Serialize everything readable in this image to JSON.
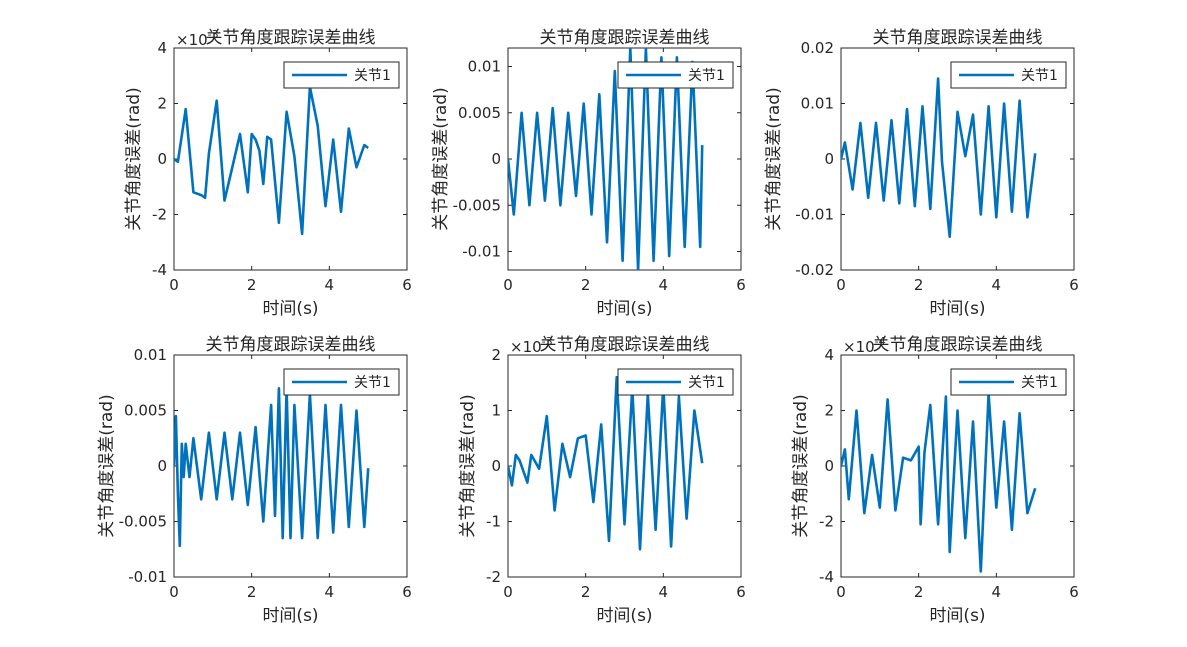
{
  "chart_data": [
    {
      "type": "line",
      "title": "关节角度跟踪误差曲线",
      "xlabel": "时间(s)",
      "ylabel": "关节角度误差(rad)",
      "exponent_label": "10",
      "exponent_power": "-3",
      "exponent_multiplier": "×",
      "xlim": [
        0,
        6
      ],
      "ylim": [
        -4,
        4
      ],
      "xticks": [
        "0",
        "2",
        "4",
        "6"
      ],
      "yticks": [
        "-4",
        "-2",
        "0",
        "2",
        "4"
      ],
      "legend": {
        "position": "top-right"
      },
      "series": [
        {
          "name": "关节1",
          "x": [
            0,
            0.1,
            0.3,
            0.5,
            0.7,
            0.8,
            0.9,
            1.1,
            1.3,
            1.5,
            1.7,
            1.9,
            2.0,
            2.1,
            2.2,
            2.3,
            2.4,
            2.5,
            2.7,
            2.9,
            3.1,
            3.3,
            3.5,
            3.7,
            3.9,
            4.1,
            4.3,
            4.5,
            4.7,
            4.9,
            5.0
          ],
          "y": [
            0,
            -0.1,
            1.8,
            -1.2,
            -1.3,
            -1.4,
            0.2,
            2.1,
            -1.5,
            -0.3,
            0.9,
            -1.2,
            0.9,
            0.7,
            0.3,
            -0.9,
            0.8,
            0.7,
            -2.3,
            1.7,
            0.1,
            -2.7,
            2.6,
            1.2,
            -1.7,
            0.7,
            -1.9,
            1.1,
            -0.3,
            0.5,
            0.4
          ]
        }
      ]
    },
    {
      "type": "line",
      "title": "关节角度跟踪误差曲线",
      "xlabel": "时间(s)",
      "ylabel": "关节角度误差(rad)",
      "xlim": [
        0,
        6
      ],
      "ylim": [
        -0.012,
        0.012
      ],
      "xticks": [
        "0",
        "2",
        "4",
        "6"
      ],
      "yticks": [
        "-0.01",
        "-0.005",
        "0",
        "0.005",
        "0.01"
      ],
      "ytick_values": [
        -0.01,
        -0.005,
        0,
        0.005,
        0.01
      ],
      "legend": {
        "position": "top-right"
      },
      "series": [
        {
          "name": "关节1",
          "x": [
            0,
            0.15,
            0.35,
            0.55,
            0.75,
            0.95,
            1.15,
            1.35,
            1.55,
            1.75,
            1.95,
            2.15,
            2.35,
            2.55,
            2.75,
            2.95,
            3.15,
            3.35,
            3.55,
            3.75,
            3.95,
            4.15,
            4.35,
            4.55,
            4.75,
            4.95,
            5.0
          ],
          "y": [
            0,
            -0.006,
            0.005,
            -0.005,
            0.005,
            -0.0045,
            0.0055,
            -0.005,
            0.005,
            -0.004,
            0.006,
            -0.006,
            0.007,
            -0.009,
            0.0095,
            -0.011,
            0.012,
            -0.012,
            0.012,
            -0.011,
            0.011,
            -0.0105,
            0.011,
            -0.0095,
            0.0105,
            -0.0095,
            0.0015
          ]
        }
      ]
    },
    {
      "type": "line",
      "title": "关节角度跟踪误差曲线",
      "xlabel": "时间(s)",
      "ylabel": "关节角度误差(rad)",
      "xlim": [
        0,
        6
      ],
      "ylim": [
        -0.02,
        0.02
      ],
      "xticks": [
        "0",
        "2",
        "4",
        "6"
      ],
      "yticks": [
        "-0.02",
        "-0.01",
        "0",
        "0.01",
        "0.02"
      ],
      "ytick_values": [
        -0.02,
        -0.01,
        0,
        0.01,
        0.02
      ],
      "legend": {
        "position": "top-right"
      },
      "series": [
        {
          "name": "关节1",
          "x": [
            0,
            0.1,
            0.3,
            0.5,
            0.7,
            0.9,
            1.1,
            1.3,
            1.5,
            1.7,
            1.9,
            2.1,
            2.3,
            2.5,
            2.6,
            2.8,
            3.0,
            3.2,
            3.4,
            3.6,
            3.8,
            4.0,
            4.2,
            4.4,
            4.6,
            4.8,
            5.0
          ],
          "y": [
            0,
            0.003,
            -0.0055,
            0.0065,
            -0.007,
            0.0065,
            -0.0075,
            0.007,
            -0.008,
            0.009,
            -0.0085,
            0.0095,
            -0.009,
            0.0145,
            -0.0005,
            -0.014,
            0.0085,
            0.0005,
            0.008,
            -0.01,
            0.0095,
            -0.0105,
            0.01,
            -0.0095,
            0.0105,
            -0.0105,
            0.001
          ]
        }
      ]
    },
    {
      "type": "line",
      "title": "关节角度跟踪误差曲线",
      "xlabel": "时间(s)",
      "ylabel": "关节角度误差(rad)",
      "xlim": [
        0,
        6
      ],
      "ylim": [
        -0.01,
        0.01
      ],
      "xticks": [
        "0",
        "2",
        "4",
        "6"
      ],
      "yticks": [
        "-0.01",
        "-0.005",
        "0",
        "0.005",
        "0.01"
      ],
      "ytick_values": [
        -0.01,
        -0.005,
        0,
        0.005,
        0.01
      ],
      "legend": {
        "position": "top-right"
      },
      "series": [
        {
          "name": "关节1",
          "x": [
            0,
            0.05,
            0.1,
            0.15,
            0.2,
            0.25,
            0.3,
            0.4,
            0.5,
            0.7,
            0.9,
            1.1,
            1.3,
            1.5,
            1.7,
            1.9,
            2.1,
            2.3,
            2.5,
            2.6,
            2.7,
            2.8,
            2.9,
            3.0,
            3.1,
            3.3,
            3.5,
            3.7,
            3.9,
            4.1,
            4.3,
            4.5,
            4.7,
            4.9,
            5.0
          ],
          "y": [
            0,
            0.0045,
            -0.0025,
            -0.0072,
            0.002,
            -0.001,
            0.002,
            -0.001,
            0.0025,
            -0.003,
            0.003,
            -0.003,
            0.003,
            -0.003,
            0.003,
            -0.0035,
            0.0035,
            -0.005,
            0.0055,
            -0.0045,
            0.007,
            -0.0065,
            0.007,
            -0.0065,
            0.0055,
            -0.0065,
            0.0065,
            -0.0065,
            0.0055,
            -0.006,
            0.0055,
            -0.0055,
            0.005,
            -0.0055,
            -0.0002
          ]
        }
      ]
    },
    {
      "type": "line",
      "title": "关节角度跟踪误差曲线",
      "xlabel": "时间(s)",
      "ylabel": "关节角度误差(rad)",
      "exponent_label": "10",
      "exponent_power": "-3",
      "exponent_multiplier": "×",
      "xlim": [
        0,
        6
      ],
      "ylim": [
        -2,
        2
      ],
      "xticks": [
        "0",
        "2",
        "4",
        "6"
      ],
      "yticks": [
        "-2",
        "-1",
        "0",
        "1",
        "2"
      ],
      "legend": {
        "position": "top-right"
      },
      "series": [
        {
          "name": "关节1",
          "x": [
            0,
            0.1,
            0.2,
            0.3,
            0.5,
            0.6,
            0.8,
            1.0,
            1.2,
            1.4,
            1.6,
            1.8,
            2.0,
            2.2,
            2.4,
            2.6,
            2.8,
            3.0,
            3.2,
            3.4,
            3.6,
            3.8,
            4.0,
            4.2,
            4.4,
            4.6,
            4.8,
            5.0
          ],
          "y": [
            0,
            -0.35,
            0.2,
            0.1,
            -0.3,
            0.2,
            -0.05,
            0.9,
            -0.8,
            0.4,
            -0.2,
            0.5,
            0.55,
            -0.65,
            0.75,
            -1.35,
            1.6,
            -1.05,
            1.4,
            -1.5,
            1.3,
            -1.15,
            1.45,
            -1.45,
            1.25,
            -0.95,
            1.0,
            0.05
          ]
        }
      ]
    },
    {
      "type": "line",
      "title": "关节角度跟踪误差曲线",
      "xlabel": "时间(s)",
      "ylabel": "关节角度误差(rad)",
      "exponent_label": "10",
      "exponent_power": "-4",
      "exponent_multiplier": "×",
      "xlim": [
        0,
        6
      ],
      "ylim": [
        -4,
        4
      ],
      "xticks": [
        "0",
        "2",
        "4",
        "6"
      ],
      "yticks": [
        "-4",
        "-2",
        "0",
        "2",
        "4"
      ],
      "legend": {
        "position": "top-right"
      },
      "series": [
        {
          "name": "关节1",
          "x": [
            0,
            0.1,
            0.2,
            0.4,
            0.6,
            0.8,
            1.0,
            1.2,
            1.4,
            1.6,
            1.8,
            2.0,
            2.05,
            2.15,
            2.3,
            2.5,
            2.7,
            2.8,
            3.0,
            3.2,
            3.4,
            3.6,
            3.8,
            4.0,
            4.2,
            4.4,
            4.6,
            4.8,
            5.0
          ],
          "y": [
            0,
            0.6,
            -1.2,
            2.0,
            -1.7,
            0.4,
            -1.5,
            2.4,
            -1.6,
            0.3,
            0.2,
            0.7,
            -2.1,
            0.5,
            2.2,
            -2.1,
            2.5,
            -3.1,
            2.0,
            -2.6,
            1.6,
            -3.8,
            2.6,
            -1.5,
            1.6,
            -2.3,
            1.9,
            -1.7,
            -0.8
          ]
        }
      ]
    }
  ]
}
